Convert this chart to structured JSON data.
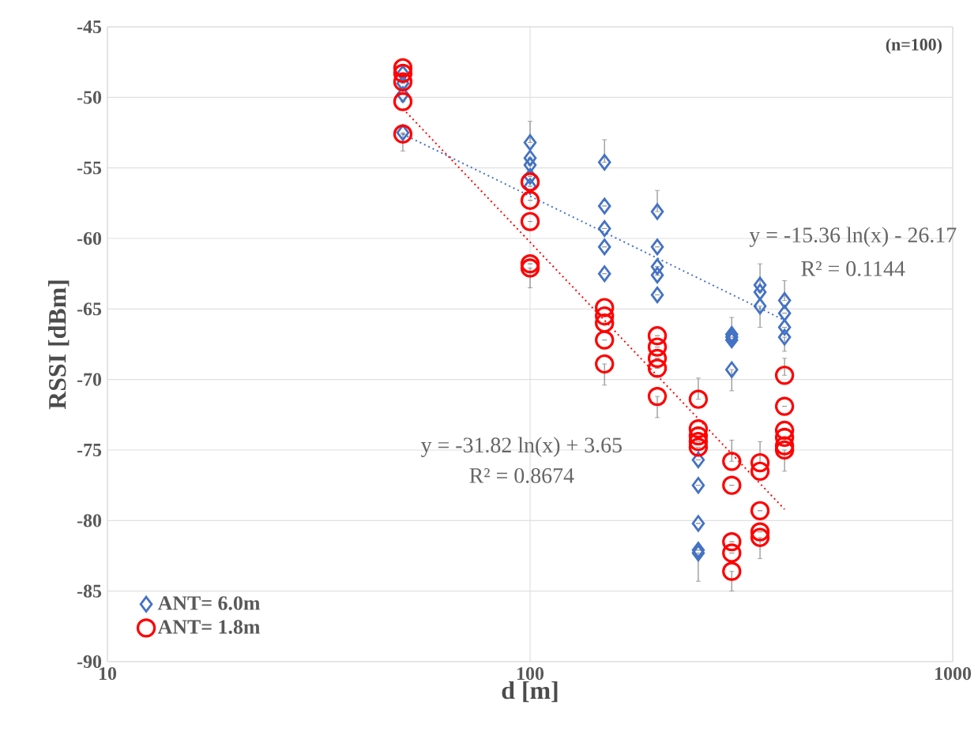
{
  "chart_data": {
    "type": "scatter",
    "xlabel": "d [m]",
    "ylabel": "RSSI [dBm]",
    "log": "x",
    "xlim": [
      10,
      1000
    ],
    "xticks": [
      10,
      100,
      1000
    ],
    "ylim": [
      -90,
      -45
    ],
    "yticks": [
      -90,
      -85,
      -80,
      -75,
      -70,
      -65,
      -60,
      -55,
      -50,
      -45
    ],
    "grid": true,
    "legend": "bottom left",
    "annotations": [
      "(n=100)",
      "y = -15.36 ln(x) - 26.17",
      "R² = 0.1144",
      "y = -31.82 ln(x) + 3.65",
      "R² = 0.8674"
    ],
    "series": [
      {
        "name": "ANT= 6.0m",
        "color": "#4472c4",
        "marker": "diamond",
        "x": [
          50,
          50,
          50,
          50,
          100,
          100,
          100,
          100,
          100,
          150,
          150,
          150,
          150,
          150,
          200,
          200,
          200,
          200,
          200,
          250,
          250,
          250,
          250,
          250,
          300,
          300,
          300,
          300,
          350,
          350,
          350,
          400,
          400,
          400,
          400
        ],
        "values": [
          -48.3,
          -49,
          -49.8,
          -52.5,
          -53.2,
          -54.3,
          -54.8,
          -55.6,
          -56.3,
          -54.6,
          -57.7,
          -59.3,
          -60.6,
          -62.5,
          -58.1,
          -60.6,
          -62,
          -62.6,
          -64,
          -75.7,
          -77.5,
          -80.2,
          -82.1,
          -82.3,
          -66.8,
          -67,
          -67.2,
          -69.3,
          -63.3,
          -63.8,
          -64.8,
          -64.4,
          -65.3,
          -66.3,
          -67
        ],
        "errors": [
          null,
          null,
          null,
          [
            -53.8,
            -52.5
          ],
          [
            -53.2,
            -51.7
          ],
          null,
          null,
          null,
          null,
          [
            -54.6,
            -53
          ],
          null,
          null,
          null,
          null,
          [
            -58.1,
            -56.6
          ],
          null,
          null,
          null,
          null,
          null,
          null,
          null,
          null,
          [
            -84.3,
            -82.3
          ],
          [
            -66.8,
            -65.6
          ],
          null,
          null,
          [
            -70.8,
            -69.3
          ],
          [
            -63.3,
            -61.8
          ],
          null,
          [
            -66.3,
            -64.8
          ],
          [
            -64.4,
            -63
          ],
          null,
          null,
          [
            -68,
            -67
          ]
        ]
      },
      {
        "name": "ANT= 1.8m",
        "color": "#ff0000",
        "marker": "circle",
        "x": [
          50,
          50,
          50,
          50,
          50,
          100,
          100,
          100,
          100,
          100,
          150,
          150,
          150,
          150,
          150,
          200,
          200,
          200,
          200,
          200,
          250,
          250,
          250,
          250,
          250,
          300,
          300,
          300,
          300,
          300,
          350,
          350,
          350,
          350,
          350,
          400,
          400,
          400,
          400,
          400,
          400
        ],
        "values": [
          -47.9,
          -48.3,
          -48.9,
          -50.3,
          -52.6,
          -56,
          -57.3,
          -58.8,
          -61.8,
          -62.1,
          -64.9,
          -65.5,
          -66,
          -67.2,
          -68.9,
          -66.9,
          -67.7,
          -68.5,
          -69.2,
          -71.2,
          -71.4,
          -73.5,
          -74,
          -74.4,
          -74.8,
          -75.8,
          -77.5,
          -81.5,
          -82.3,
          -83.6,
          -75.9,
          -76.5,
          -79.3,
          -80.8,
          -81.2,
          -69.7,
          -71.9,
          -73.6,
          -74.1,
          -74.7,
          -75
        ],
        "errors": [
          null,
          null,
          null,
          null,
          null,
          null,
          null,
          null,
          null,
          [
            -63.5,
            -62.1
          ],
          null,
          null,
          null,
          null,
          [
            -70.4,
            -68.9
          ],
          null,
          null,
          null,
          null,
          [
            -72.7,
            -71.2
          ],
          [
            -71.4,
            -69.9
          ],
          null,
          null,
          null,
          null,
          [
            -75.8,
            -74.3
          ],
          null,
          null,
          null,
          [
            -85,
            -83.6
          ],
          [
            -75.9,
            -74.4
          ],
          null,
          null,
          null,
          [
            -82.7,
            -81.2
          ],
          [
            -69.7,
            -68.5
          ],
          null,
          null,
          null,
          null,
          [
            -76.5,
            -75
          ]
        ]
      },
      {
        "type": "line",
        "color": "#4472c4",
        "marker": "none",
        "line_style": "dotted",
        "x": [
          50,
          400
        ],
        "values": [
          -52.6,
          -65.8
        ]
      },
      {
        "type": "line",
        "color": "#ff0000",
        "marker": "none",
        "line_style": "dotted",
        "x": [
          50,
          400
        ],
        "values": [
          -50.8,
          -79.2
        ]
      }
    ]
  }
}
